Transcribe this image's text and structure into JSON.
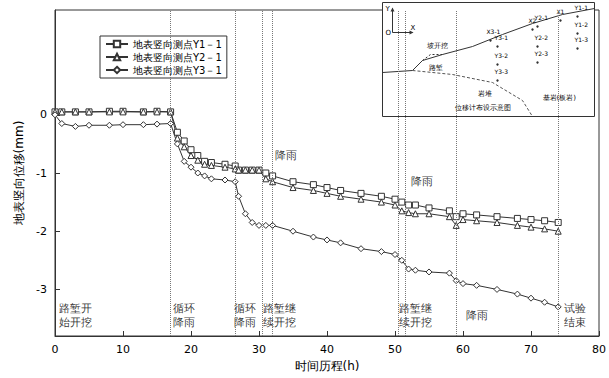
{
  "chart_data": {
    "type": "line",
    "x_label": "时间历程(h)",
    "y_label": "地表竖向位移(mm)",
    "xlim": [
      0,
      80
    ],
    "xticks": [
      0,
      10,
      20,
      30,
      40,
      50,
      60,
      70,
      80
    ],
    "ylim": [
      -3.8,
      1.8
    ],
    "yticks": [
      -3,
      -2,
      -1,
      0
    ],
    "grid": false,
    "legend": "upper left",
    "x": [
      0,
      1,
      3,
      5,
      8,
      10,
      13,
      15,
      17,
      18,
      19,
      20,
      21,
      22,
      23,
      25,
      26.5,
      27,
      28,
      29,
      30,
      31,
      32,
      35,
      38,
      40,
      42,
      45,
      48,
      50,
      51,
      52,
      53,
      55,
      58,
      59,
      60,
      62,
      65,
      68,
      70,
      72,
      74
    ],
    "series": [
      {
        "name": "地表竖向测点Y1－1",
        "color": "#333333",
        "marker": "square",
        "line_style": "solid",
        "values": [
          0.05,
          0.05,
          0.05,
          0.05,
          0.06,
          0.06,
          0.05,
          0.06,
          0.05,
          -0.3,
          -0.45,
          -0.6,
          -0.7,
          -0.8,
          -0.82,
          -0.85,
          -0.88,
          -0.95,
          -0.95,
          -0.95,
          -0.95,
          -1.0,
          -1.05,
          -1.15,
          -1.2,
          -1.25,
          -1.3,
          -1.35,
          -1.4,
          -1.45,
          -1.5,
          -1.55,
          -1.55,
          -1.6,
          -1.65,
          -1.75,
          -1.7,
          -1.72,
          -1.75,
          -1.78,
          -1.8,
          -1.82,
          -1.85
        ]
      },
      {
        "name": "地表竖向测点Y2－1",
        "color": "#333333",
        "marker": "triangle",
        "line_style": "solid",
        "values": [
          0.05,
          0.05,
          0.05,
          0.05,
          0.05,
          0.05,
          0.05,
          0.05,
          0.05,
          -0.4,
          -0.55,
          -0.7,
          -0.78,
          -0.85,
          -0.87,
          -0.9,
          -0.93,
          -0.95,
          -0.95,
          -0.95,
          -0.95,
          -1.1,
          -1.15,
          -1.25,
          -1.3,
          -1.35,
          -1.4,
          -1.45,
          -1.5,
          -1.55,
          -1.65,
          -1.68,
          -1.7,
          -1.7,
          -1.75,
          -1.9,
          -1.8,
          -1.82,
          -1.85,
          -1.9,
          -1.93,
          -1.96,
          -2.0
        ]
      },
      {
        "name": "地表竖向测点Y3－1",
        "color": "#333333",
        "marker": "diamond",
        "line_style": "solid",
        "values": [
          0,
          -0.15,
          -0.2,
          -0.18,
          -0.18,
          -0.17,
          -0.17,
          -0.16,
          -0.15,
          -0.5,
          -0.8,
          -0.9,
          -1.0,
          -1.05,
          -1.1,
          -1.12,
          -1.15,
          -1.4,
          -1.7,
          -1.85,
          -1.9,
          -1.9,
          -1.9,
          -2.0,
          -2.1,
          -2.15,
          -2.2,
          -2.3,
          -2.35,
          -2.4,
          -2.5,
          -2.65,
          -2.67,
          -2.7,
          -2.72,
          -2.85,
          -2.9,
          -2.93,
          -3.0,
          -3.08,
          -3.15,
          -3.22,
          -3.3
        ]
      }
    ],
    "vlines": [
      17,
      26.5,
      30.5,
      32,
      50.5,
      51.5,
      59,
      74
    ],
    "annotations": [
      {
        "x": 3,
        "y": -3.45,
        "text": "路堑开\n始开挖"
      },
      {
        "x": 19,
        "y": -3.45,
        "text": "循环\n降雨"
      },
      {
        "x": 28,
        "y": -3.45,
        "text": "循环\n降雨"
      },
      {
        "x": 33,
        "y": -3.45,
        "text": "路堑继\n续开挖"
      },
      {
        "x": 34,
        "y": -0.7,
        "text": "降雨"
      },
      {
        "x": 53,
        "y": -3.45,
        "text": "路堑继\n续开挖"
      },
      {
        "x": 54,
        "y": -1.15,
        "text": "降雨"
      },
      {
        "x": 62,
        "y": -3.45,
        "text": "降雨"
      },
      {
        "x": 76.5,
        "y": -3.45,
        "text": "试验\n结束"
      }
    ],
    "inset": {
      "title": "位移计布设示意图",
      "axes": [
        "Y",
        "O",
        "X"
      ],
      "labels": [
        "坡开挖",
        "路堑",
        "岩堆",
        "基岩(板岩)"
      ],
      "points": [
        "X1",
        "X2",
        "X3-1",
        "Y1-1",
        "Y1-2",
        "Y1-3",
        "Y2-1",
        "Y2-2",
        "Y2-3",
        "Y3-1",
        "Y3-2",
        "Y3-3"
      ]
    }
  }
}
